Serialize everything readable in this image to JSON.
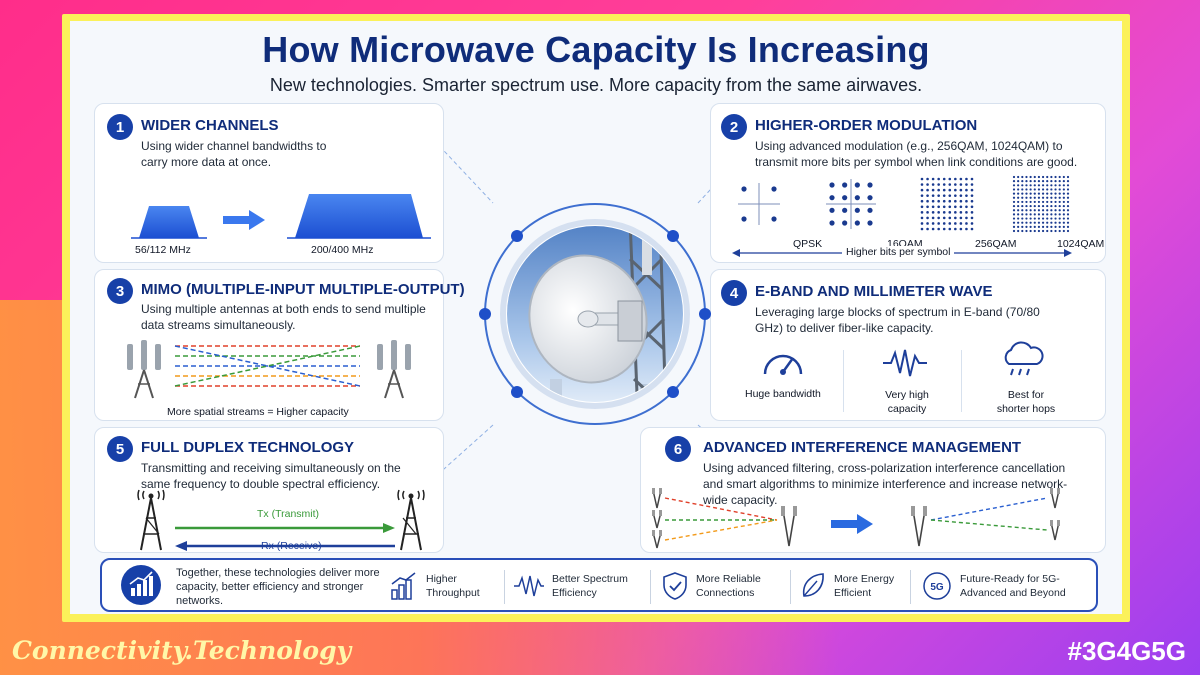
{
  "header": {
    "title": "How Microwave Capacity Is Increasing",
    "subtitle": "New technologies. Smarter spectrum use. More capacity from the same airwaves."
  },
  "sections": [
    {
      "number": "1",
      "title": "WIDER CHANNELS",
      "body": "Using wider channel bandwidths to carry more data at once.",
      "labels": [
        "56/112 MHz",
        "200/400 MHz"
      ]
    },
    {
      "number": "2",
      "title": "HIGHER-ORDER MODULATION",
      "body": "Using advanced modulation (e.g., 256QAM, 1024QAM) to transmit more bits per symbol when link conditions are good.",
      "labels": [
        "QPSK",
        "16QAM",
        "256QAM",
        "1024QAM"
      ],
      "axis_label": "Higher bits per symbol"
    },
    {
      "number": "3",
      "title": "MIMO (MULTIPLE-INPUT MULTIPLE-OUTPUT)",
      "body": "Using multiple antennas at both ends to send multiple data streams simultaneously.",
      "caption": "More spatial streams = Higher capacity"
    },
    {
      "number": "4",
      "title": "E-BAND AND MILLIMETER WAVE",
      "body": "Leveraging large blocks of spectrum in E-band (70/80 GHz) to deliver fiber-like capacity.",
      "features": [
        "Huge bandwidth",
        "Very high capacity",
        "Best for shorter hops"
      ],
      "feature_icons": [
        "speedometer-icon",
        "waveform-icon",
        "rain-cloud-icon"
      ]
    },
    {
      "number": "5",
      "title": "FULL DUPLEX TECHNOLOGY",
      "body": "Transmitting and receiving simultaneously on the same frequency to double spectral efficiency.",
      "tx_label": "Tx (Transmit)",
      "rx_label": "Rx (Receive)"
    },
    {
      "number": "6",
      "title": "ADVANCED INTERFERENCE MANAGEMENT",
      "body": "Using advanced filtering, cross-polarization interference cancellation and smart algorithms to minimize interference and increase network-wide capacity."
    }
  ],
  "footer": {
    "summary": "Together, these technologies deliver more capacity, better efficiency and stronger networks.",
    "items": [
      {
        "label": "Higher Throughput",
        "icon": "bar-chart-icon"
      },
      {
        "label": "Better Spectrum Efficiency",
        "icon": "waveform-icon"
      },
      {
        "label": "More Reliable Connections",
        "icon": "shield-check-icon"
      },
      {
        "label": "More Energy Efficient",
        "icon": "leaf-icon"
      },
      {
        "label": "Future-Ready for 5G-Advanced and Beyond",
        "icon": "5g-icon"
      }
    ]
  },
  "brand": "Connectivity.Technology",
  "hashtag": "#3G4G5G",
  "colors": {
    "navy": "#0f2c7a",
    "blue": "#1740a8",
    "frame_yellow": "#fbf15a",
    "tx_green": "#3a9a3a",
    "rx_blue": "#1e3f9a"
  }
}
